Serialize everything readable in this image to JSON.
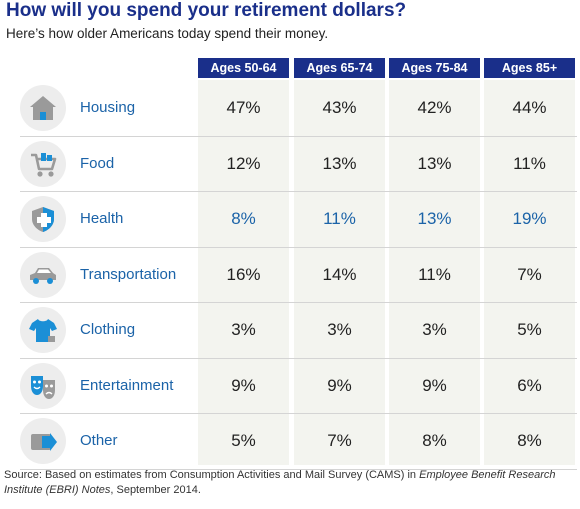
{
  "title": "How will you spend your retirement dollars?",
  "subtitle": "Here’s how older Americans today spend their money.",
  "source": {
    "prefix": "Source: Based on estimates from Consumption Activities and Mail Survey (CAMS) in ",
    "publication": "Employee Benefit Research Institute (EBRI) Notes",
    "suffix": ", September 2014."
  },
  "colors": {
    "header_bg": "#1a2f8a",
    "title": "#1a2f8a",
    "category_text": "#1b63a8",
    "highlight_text": "#1b63a8",
    "icon_fill": "#1b8fd6",
    "icon_bg": "#ededed",
    "column_shade": "#f3f4ef"
  },
  "chart_data": {
    "type": "table",
    "columns": [
      "Ages 50-64",
      "Ages 65-74",
      "Ages 75-84",
      "Ages 85+"
    ],
    "rows": [
      {
        "category": "Housing",
        "icon": "house-icon",
        "values": [
          "47%",
          "43%",
          "42%",
          "44%"
        ],
        "highlight": false
      },
      {
        "category": "Food",
        "icon": "shopping-cart-icon",
        "values": [
          "12%",
          "13%",
          "13%",
          "11%"
        ],
        "highlight": false
      },
      {
        "category": "Health",
        "icon": "medical-shield-icon",
        "values": [
          "8%",
          "11%",
          "13%",
          "19%"
        ],
        "highlight": true
      },
      {
        "category": "Transportation",
        "icon": "car-icon",
        "values": [
          "16%",
          "14%",
          "11%",
          "7%"
        ],
        "highlight": false
      },
      {
        "category": "Clothing",
        "icon": "shirt-icon",
        "values": [
          "3%",
          "3%",
          "3%",
          "5%"
        ],
        "highlight": false
      },
      {
        "category": "Entertainment",
        "icon": "theater-masks-icon",
        "values": [
          "9%",
          "9%",
          "9%",
          "6%"
        ],
        "highlight": false
      },
      {
        "category": "Other",
        "icon": "wallet-icon",
        "values": [
          "5%",
          "7%",
          "8%",
          "8%"
        ],
        "highlight": false
      }
    ]
  }
}
